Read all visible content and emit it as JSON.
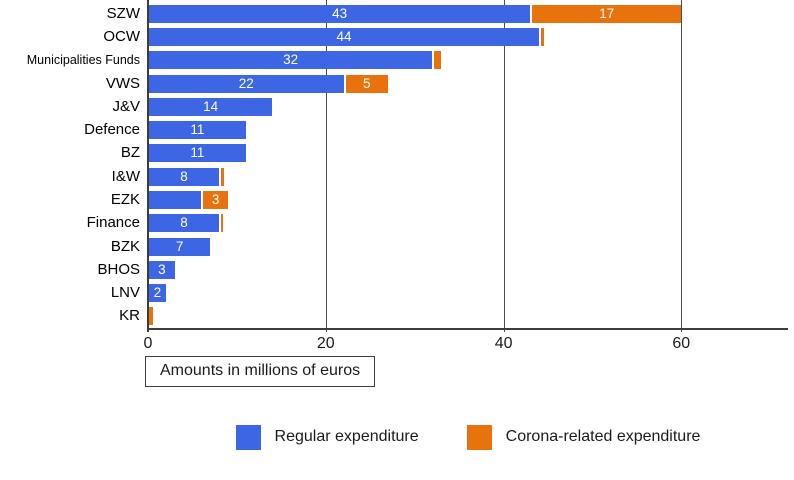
{
  "chart_data": {
    "type": "bar",
    "orientation": "horizontal",
    "stacked": true,
    "title": "",
    "xlabel_box": "Amounts in millions of euros",
    "x_ticks": [
      0,
      20,
      40,
      60
    ],
    "xlim": [
      0,
      72
    ],
    "grid": "vertical gridlines at 20, 40, 60",
    "legend_position": "bottom-center",
    "categories": [
      "SZW",
      "OCW",
      "Municipalities Funds",
      "VWS",
      "J&V",
      "Defence",
      "BZ",
      "I&W",
      "EZK",
      "Finance",
      "BZK",
      "BHOS",
      "LNV",
      "KR"
    ],
    "series": [
      {
        "name": "Regular expenditure",
        "color": "#3C66E3",
        "values": [
          43,
          44,
          32,
          22,
          14,
          11,
          11,
          8,
          6,
          8,
          7,
          3,
          2,
          0
        ],
        "bar_labels": [
          "43",
          "44",
          "32",
          "22",
          "14",
          "11",
          "11",
          "8",
          "",
          "8",
          "7",
          "3",
          "2",
          ""
        ]
      },
      {
        "name": "Corona-related expenditure",
        "color": "#E8730C",
        "values": [
          17,
          0.6,
          1,
          5,
          0,
          0,
          0,
          0.6,
          3,
          0.2,
          0,
          0,
          0,
          0.6
        ],
        "bar_labels": [
          "17",
          "",
          "",
          "5",
          "",
          "",
          "",
          "",
          "3",
          "",
          "",
          "",
          "",
          ""
        ]
      }
    ],
    "styles": {
      "grid_color": "#4c4c4c",
      "axis_color": "#3c3c3c",
      "text_color": "#1b1b1b",
      "bar_label_color": "#ffffff",
      "background": "#ffffff"
    }
  }
}
